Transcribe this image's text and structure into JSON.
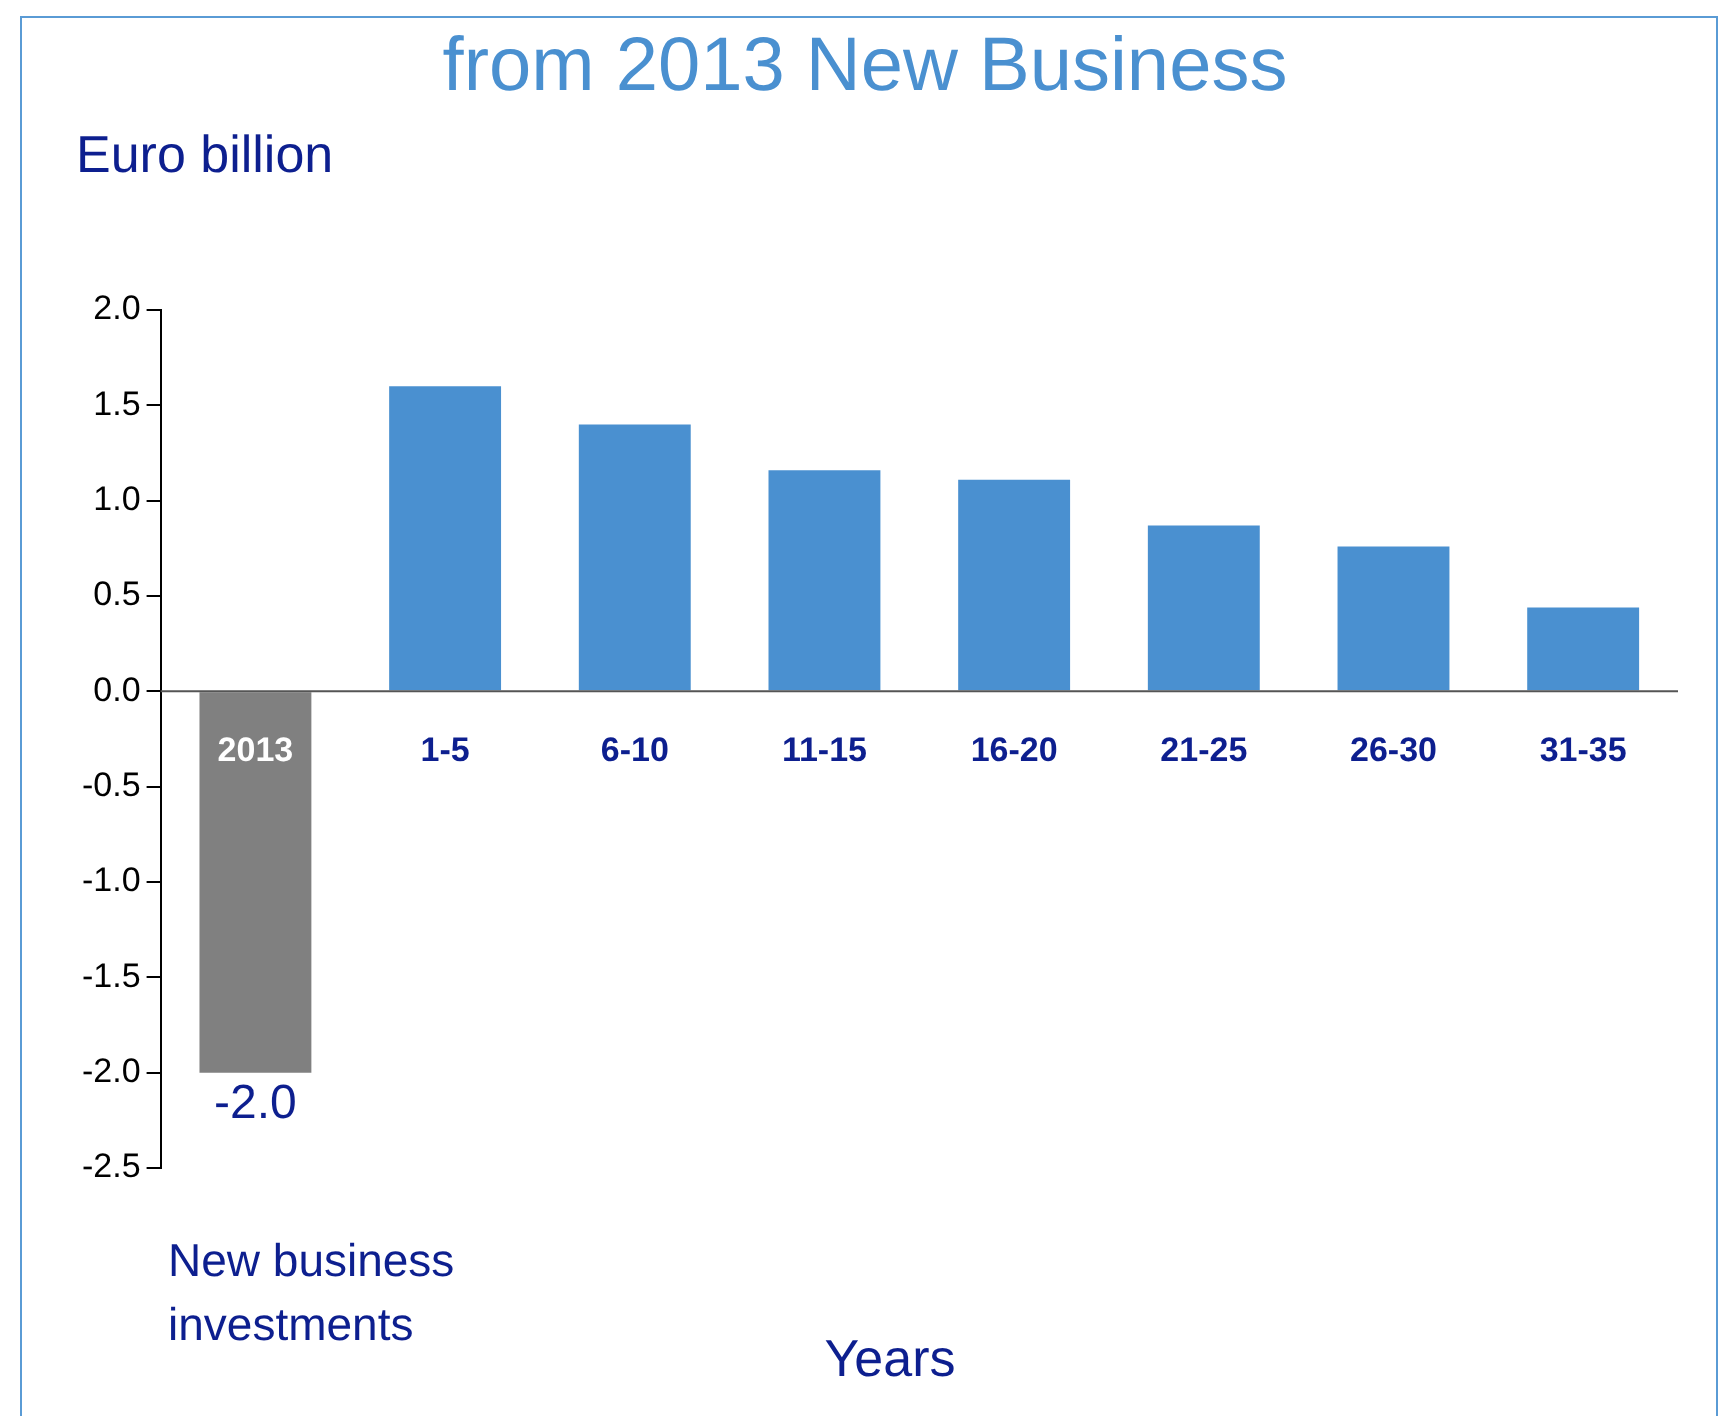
{
  "chart_data": {
    "type": "bar",
    "title": "from 2013 New Business",
    "ylabel": "Euro billion",
    "xlabel": "Years",
    "annotations": [
      "New business investments"
    ],
    "categories": [
      "2013",
      "1-5",
      "6-10",
      "11-15",
      "16-20",
      "21-25",
      "26-30",
      "31-35"
    ],
    "values": [
      -2.0,
      1.6,
      1.4,
      1.16,
      1.11,
      0.87,
      0.76,
      0.44
    ],
    "colors": [
      "#808080",
      "#4a90d0",
      "#4a90d0",
      "#4a90d0",
      "#4a90d0",
      "#4a90d0",
      "#4a90d0",
      "#4a90d0"
    ],
    "value_labels": [
      "-2.0",
      null,
      null,
      null,
      null,
      null,
      null,
      null
    ],
    "ylim": [
      -2.5,
      2.0
    ],
    "yticks": [
      -2.5,
      {
        "value": -2,
        "label": "-2.0"
      },
      -1.5,
      {
        "value": -1,
        "label": "-1.0"
      },
      -0.5,
      {
        "value": 0,
        "label": "0.0"
      },
      0.5,
      {
        "value": 1,
        "label": "1.0"
      },
      1.5,
      {
        "value": 2,
        "label": "2.0"
      }
    ],
    "grid": false,
    "legend": false
  }
}
